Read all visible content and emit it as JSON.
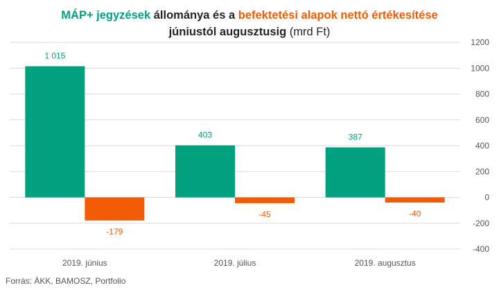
{
  "chart_data": {
    "type": "bar",
    "title_parts": {
      "series1": "MÁP+ jegyzések",
      "mid1": "állománya és a",
      "series2": "befektetési alapok nettó értékesítése",
      "line2": "júniustól augusztusig",
      "unit": "(mrd Ft)"
    },
    "categories": [
      "2019. június",
      "2019. július",
      "2019. augusztus"
    ],
    "series": [
      {
        "name": "MÁP+ jegyzések",
        "color": "#00a17e",
        "values": [
          1015,
          403,
          387
        ],
        "labels": [
          "1 015",
          "403",
          "387"
        ]
      },
      {
        "name": "befektetési alapok nettó értékesítése",
        "color": "#f25c05",
        "values": [
          -179,
          -45,
          -40
        ],
        "labels": [
          "-179",
          "-45",
          "-40"
        ]
      }
    ],
    "ylim": [
      -400,
      1200
    ],
    "yticks": [
      1200,
      1000,
      800,
      600,
      400,
      200,
      0,
      -200,
      -400
    ],
    "grid": true,
    "y_axis_side": "right"
  },
  "source": "Forrás: ÁKK, BAMOSZ, Portfolio"
}
